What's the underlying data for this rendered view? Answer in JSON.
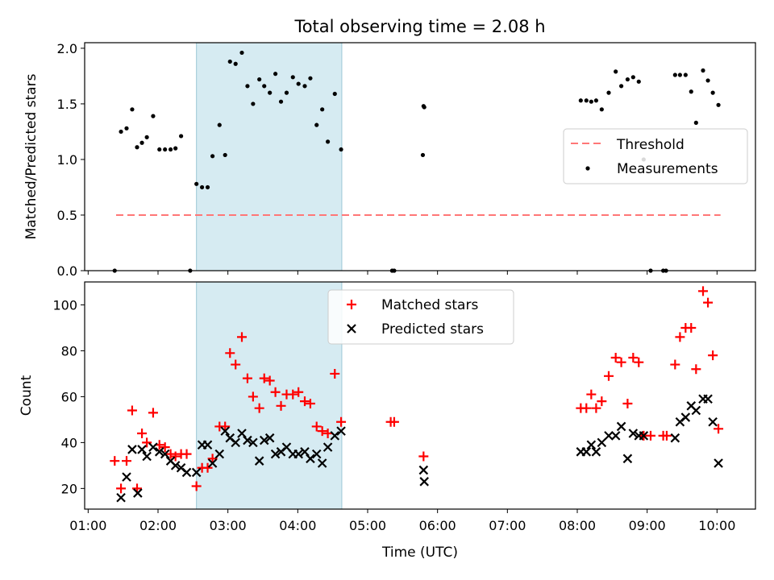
{
  "title": "Total observing time = 2.08 h",
  "chart_data": [
    {
      "type": "scatter",
      "ylabel": "Matched/Predicted stars",
      "ylim": [
        0,
        2.05
      ],
      "yticks": [
        "0.0",
        "0.5",
        "1.0",
        "1.5",
        "2.0"
      ],
      "ytick_values": [
        0,
        0.5,
        1.0,
        1.5,
        2.0
      ],
      "xlim_hours": [
        0.95,
        10.55
      ],
      "shaded_interval_hours": [
        2.55,
        4.63
      ],
      "legend_position": "center-right",
      "series": [
        {
          "name": "Threshold",
          "style": "dashed-line",
          "color": "#ff7777",
          "x": [
            1.4,
            10.05
          ],
          "y": [
            0.5,
            0.5
          ]
        },
        {
          "name": "Measurements",
          "style": "dot",
          "color": "#000000",
          "x": [
            1.38,
            1.47,
            1.55,
            1.63,
            1.7,
            1.77,
            1.84,
            1.93,
            2.02,
            2.1,
            2.18,
            2.25,
            2.33,
            2.46,
            2.55,
            2.63,
            2.71,
            2.78,
            2.88,
            2.96,
            3.03,
            3.11,
            3.2,
            3.28,
            3.36,
            3.45,
            3.52,
            3.6,
            3.68,
            3.76,
            3.84,
            3.93,
            4.01,
            4.1,
            4.18,
            4.27,
            4.35,
            4.43,
            4.53,
            4.62,
            5.35,
            5.38,
            5.79,
            5.8,
            5.81,
            8.05,
            8.13,
            8.2,
            8.27,
            8.35,
            8.45,
            8.55,
            8.63,
            8.72,
            8.8,
            8.88,
            8.95,
            9.05,
            9.23,
            9.27,
            9.4,
            9.47,
            9.55,
            9.63,
            9.7,
            9.8,
            9.87,
            9.94,
            10.02
          ],
          "y": [
            0.0,
            1.25,
            1.28,
            1.45,
            1.11,
            1.15,
            1.2,
            1.39,
            1.09,
            1.09,
            1.09,
            1.1,
            1.21,
            0.0,
            0.78,
            0.75,
            0.75,
            1.03,
            1.31,
            1.04,
            1.88,
            1.86,
            1.96,
            1.66,
            1.5,
            1.72,
            1.66,
            1.6,
            1.77,
            1.52,
            1.6,
            1.74,
            1.68,
            1.66,
            1.73,
            1.31,
            1.45,
            1.16,
            1.59,
            1.09,
            0.0,
            0.0,
            1.04,
            1.48,
            1.47,
            1.53,
            1.53,
            1.52,
            1.53,
            1.45,
            1.6,
            1.79,
            1.66,
            1.72,
            1.74,
            1.7,
            1.0,
            0.0,
            0.0,
            0.0,
            1.76,
            1.76,
            1.76,
            1.61,
            1.33,
            1.8,
            1.71,
            1.6,
            1.49
          ]
        }
      ]
    },
    {
      "type": "scatter",
      "xlabel": "Time (UTC)",
      "ylabel": "Count",
      "ylim": [
        11,
        110
      ],
      "yticks": [
        "20",
        "40",
        "60",
        "80",
        "100"
      ],
      "ytick_values": [
        20,
        40,
        60,
        80,
        100
      ],
      "xlim_hours": [
        0.95,
        10.55
      ],
      "xticks": [
        "01:00",
        "02:00",
        "03:00",
        "04:00",
        "05:00",
        "06:00",
        "07:00",
        "08:00",
        "09:00",
        "10:00"
      ],
      "xtick_values_hours": [
        1,
        2,
        3,
        4,
        5,
        6,
        7,
        8,
        9,
        10
      ],
      "shaded_interval_hours": [
        2.55,
        4.63
      ],
      "legend_position": "top-center",
      "series": [
        {
          "name": "Matched stars",
          "marker": "+",
          "color": "#ff0000",
          "x": [
            1.38,
            1.47,
            1.55,
            1.63,
            1.7,
            1.77,
            1.84,
            1.93,
            2.02,
            2.1,
            2.18,
            2.25,
            2.33,
            2.41,
            2.55,
            2.63,
            2.71,
            2.78,
            2.88,
            2.96,
            3.03,
            3.11,
            3.2,
            3.28,
            3.36,
            3.45,
            3.52,
            3.6,
            3.68,
            3.76,
            3.84,
            3.93,
            4.01,
            4.1,
            4.18,
            4.27,
            4.35,
            4.43,
            4.53,
            4.62,
            5.33,
            5.38,
            5.8,
            8.05,
            8.13,
            8.2,
            8.27,
            8.35,
            8.45,
            8.55,
            8.63,
            8.72,
            8.8,
            8.88,
            8.95,
            9.05,
            9.23,
            9.28,
            9.4,
            9.47,
            9.55,
            9.63,
            9.7,
            9.8,
            9.87,
            9.94,
            10.02
          ],
          "y": [
            32,
            20,
            32,
            54,
            20,
            44,
            40,
            53,
            39,
            38,
            35,
            34,
            35,
            35,
            21,
            29,
            29,
            33,
            47,
            47,
            79,
            74,
            86,
            68,
            60,
            55,
            68,
            67,
            62,
            56,
            61,
            61,
            62,
            58,
            57,
            47,
            45,
            44,
            70,
            49,
            49,
            49,
            34,
            55,
            55,
            61,
            55,
            58,
            69,
            77,
            75,
            57,
            77,
            75,
            43,
            43,
            43,
            43,
            74,
            86,
            90,
            90,
            72,
            106,
            101,
            78,
            46
          ]
        },
        {
          "name": "Predicted stars",
          "marker": "x",
          "color": "#000000",
          "x": [
            1.47,
            1.55,
            1.63,
            1.71,
            1.77,
            1.84,
            1.93,
            2.02,
            2.1,
            2.18,
            2.25,
            2.33,
            2.41,
            2.55,
            2.63,
            2.71,
            2.78,
            2.88,
            2.96,
            3.03,
            3.11,
            3.2,
            3.28,
            3.36,
            3.45,
            3.52,
            3.6,
            3.68,
            3.76,
            3.84,
            3.93,
            4.01,
            4.1,
            4.18,
            4.27,
            4.35,
            4.43,
            4.53,
            4.62,
            5.8,
            5.81,
            8.05,
            8.13,
            8.2,
            8.27,
            8.35,
            8.45,
            8.55,
            8.63,
            8.72,
            8.8,
            8.88,
            8.95,
            9.4,
            9.47,
            9.55,
            9.63,
            9.7,
            9.8,
            9.87,
            9.94,
            10.02
          ],
          "y": [
            16,
            25,
            37,
            18,
            37,
            34,
            38,
            36,
            35,
            32,
            30,
            29,
            27,
            27,
            39,
            39,
            31,
            35,
            45,
            42,
            40,
            44,
            41,
            40,
            32,
            41,
            42,
            35,
            36,
            38,
            35,
            35,
            36,
            33,
            35,
            31,
            38,
            43,
            45,
            28,
            23,
            36,
            36,
            39,
            36,
            40,
            43,
            43,
            47,
            33,
            44,
            43,
            43,
            42,
            49,
            51,
            56,
            54,
            59,
            59,
            49,
            31
          ]
        }
      ]
    }
  ]
}
